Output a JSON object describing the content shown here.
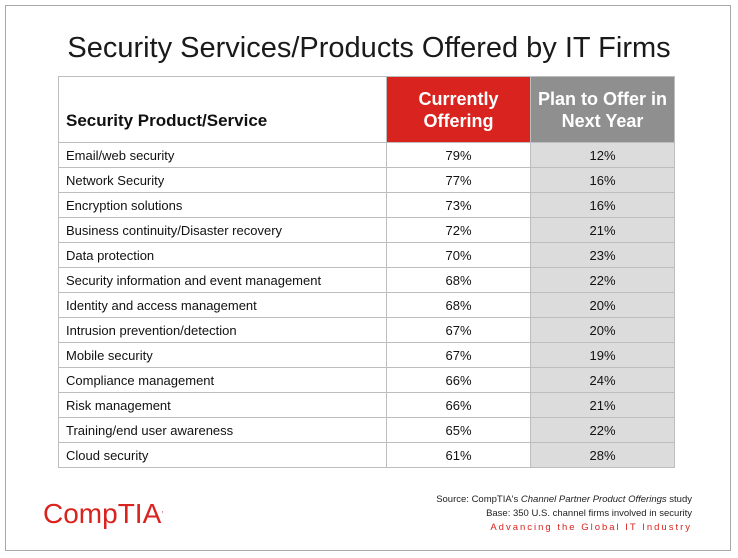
{
  "title": "Security Services/Products Offered by IT Firms",
  "chart_data": {
    "type": "table",
    "title": "Security Services/Products Offered by IT Firms",
    "columns": [
      "Security Product/Service",
      "Currently Offering",
      "Plan to Offer in Next Year"
    ],
    "rows": [
      {
        "label": "Email/web security",
        "current": "79%",
        "plan": "12%"
      },
      {
        "label": "Network Security",
        "current": "77%",
        "plan": "16%"
      },
      {
        "label": "Encryption solutions",
        "current": "73%",
        "plan": "16%"
      },
      {
        "label": "Business continuity/Disaster recovery",
        "current": "72%",
        "plan": "21%"
      },
      {
        "label": "Data protection",
        "current": "70%",
        "plan": "23%"
      },
      {
        "label": "Security information and event management",
        "current": "68%",
        "plan": "22%"
      },
      {
        "label": "Identity and access management",
        "current": "68%",
        "plan": "20%"
      },
      {
        "label": "Intrusion prevention/detection",
        "current": "67%",
        "plan": "20%"
      },
      {
        "label": "Mobile security",
        "current": "67%",
        "plan": "19%"
      },
      {
        "label": "Compliance management",
        "current": "66%",
        "plan": "24%"
      },
      {
        "label": "Risk management",
        "current": "66%",
        "plan": "21%"
      },
      {
        "label": "Training/end user awareness",
        "current": "65%",
        "plan": "22%"
      },
      {
        "label": "Cloud security",
        "current": "61%",
        "plan": "28%"
      }
    ]
  },
  "header": {
    "label_col": "Security Product/Service",
    "current_col_line1": "Currently",
    "current_col_line2": "Offering",
    "plan_col_line1": "Plan to Offer in",
    "plan_col_line2": "Next Year"
  },
  "footer": {
    "logo": "CompTIA",
    "logo_mark": ".",
    "source_prefix": "Source: CompTIA's ",
    "source_italic": "Channel Partner Product Offerings",
    "source_suffix": " study",
    "base": "Base: 350 U.S. channel firms involved in security",
    "tagline": "Advancing the Global IT Industry"
  },
  "colors": {
    "accent_red": "#d9231e",
    "header_gray": "#8f8f8f",
    "plan_cell_gray": "#dcdcdc"
  }
}
